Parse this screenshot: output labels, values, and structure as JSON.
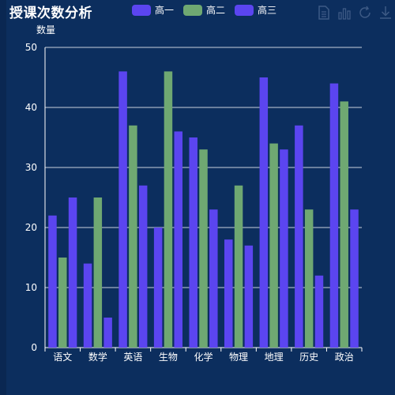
{
  "chart_data": {
    "type": "bar",
    "title": "授课次数分析",
    "ylabel": "数量",
    "xlabel": "",
    "ylim": [
      0,
      50
    ],
    "yticks": [
      0,
      10,
      20,
      30,
      40,
      50
    ],
    "grid": true,
    "legend": "top",
    "categories": [
      "语文",
      "数学",
      "英语",
      "生物",
      "化学",
      "物理",
      "地理",
      "历史",
      "政治"
    ],
    "series": [
      {
        "name": "高一",
        "color": "#5b45f0",
        "values": [
          22,
          14,
          46,
          20,
          35,
          18,
          45,
          37,
          44
        ]
      },
      {
        "name": "高二",
        "color": "#6fa872",
        "values": [
          15,
          25,
          37,
          46,
          33,
          27,
          34,
          23,
          41
        ]
      },
      {
        "name": "高三",
        "color": "#5b45f0",
        "values": [
          25,
          5,
          27,
          36,
          23,
          17,
          33,
          12,
          23
        ]
      }
    ]
  },
  "toolbox": {
    "icons": [
      "data-view-icon",
      "bar-chart-icon",
      "restore-icon",
      "download-icon"
    ],
    "color": "#3d5a85"
  }
}
